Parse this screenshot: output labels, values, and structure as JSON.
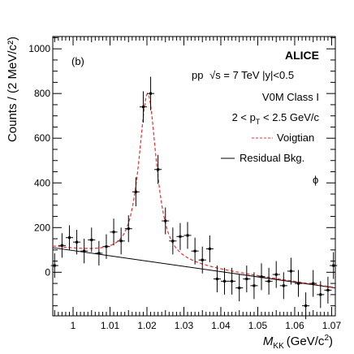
{
  "chart_data": {
    "type": "scatter",
    "panel_label": "(b)",
    "xlabel_main": "M",
    "xlabel_sub": "KK",
    "xlabel_unit": "(GeV/c",
    "xlabel_exp": "2",
    "xlabel_close": ")",
    "ylabel": "Counts / (2 MeV/c²)",
    "xlim": [
      0.9945,
      1.071
    ],
    "ylim": [
      -195,
      1055
    ],
    "xticks": [
      1,
      1.01,
      1.02,
      1.03,
      1.04,
      1.05,
      1.06,
      1.07
    ],
    "xtick_labels": [
      "1",
      "1.01",
      "1.02",
      "1.03",
      "1.04",
      "1.05",
      "1.06",
      "1.07"
    ],
    "yticks": [
      0,
      200,
      400,
      600,
      800,
      1000
    ],
    "ytick_labels": [
      "0",
      "200",
      "400",
      "600",
      "800",
      "1000"
    ],
    "annotations": {
      "experiment": "ALICE",
      "collision": "pp",
      "sqrt_s": "√s",
      "energy": " = 7 TeV  |y|<0.5",
      "class": "V0M Class I",
      "pt_pre": "2 < p",
      "pt_sub": "T",
      "pt_post": " < 2.5 GeV/c",
      "particle": "ϕ"
    },
    "legend": {
      "position": "top-right",
      "entries": [
        {
          "label": "Voigtian",
          "style": "dashed",
          "color": "#e8302f"
        },
        {
          "label": "Residual Bkg.",
          "style": "solid",
          "color": "#000000"
        }
      ]
    },
    "series": [
      {
        "name": "data",
        "style": "points-with-errors",
        "color": "#000000",
        "points": [
          {
            "x": 0.995,
            "y": 30,
            "err": 55
          },
          {
            "x": 0.997,
            "y": 120,
            "err": 55
          },
          {
            "x": 0.999,
            "y": 155,
            "err": 55
          },
          {
            "x": 1.001,
            "y": 135,
            "err": 55
          },
          {
            "x": 1.003,
            "y": 95,
            "err": 55
          },
          {
            "x": 1.005,
            "y": 145,
            "err": 55
          },
          {
            "x": 1.007,
            "y": 85,
            "err": 55
          },
          {
            "x": 1.009,
            "y": 115,
            "err": 55
          },
          {
            "x": 1.011,
            "y": 180,
            "err": 60
          },
          {
            "x": 1.013,
            "y": 140,
            "err": 60
          },
          {
            "x": 1.015,
            "y": 195,
            "err": 60
          },
          {
            "x": 1.017,
            "y": 360,
            "err": 65
          },
          {
            "x": 1.019,
            "y": 740,
            "err": 70
          },
          {
            "x": 1.021,
            "y": 800,
            "err": 75
          },
          {
            "x": 1.023,
            "y": 460,
            "err": 65
          },
          {
            "x": 1.025,
            "y": 230,
            "err": 60
          },
          {
            "x": 1.027,
            "y": 140,
            "err": 60
          },
          {
            "x": 1.029,
            "y": 160,
            "err": 60
          },
          {
            "x": 1.031,
            "y": 165,
            "err": 60
          },
          {
            "x": 1.033,
            "y": 95,
            "err": 60
          },
          {
            "x": 1.035,
            "y": 55,
            "err": 60
          },
          {
            "x": 1.037,
            "y": 105,
            "err": 60
          },
          {
            "x": 1.039,
            "y": -30,
            "err": 60
          },
          {
            "x": 1.041,
            "y": -40,
            "err": 60
          },
          {
            "x": 1.043,
            "y": -40,
            "err": 60
          },
          {
            "x": 1.045,
            "y": -70,
            "err": 60
          },
          {
            "x": 1.047,
            "y": -30,
            "err": 60
          },
          {
            "x": 1.049,
            "y": -60,
            "err": 60
          },
          {
            "x": 1.051,
            "y": -20,
            "err": 60
          },
          {
            "x": 1.053,
            "y": -40,
            "err": 60
          },
          {
            "x": 1.055,
            "y": -10,
            "err": 60
          },
          {
            "x": 1.057,
            "y": -60,
            "err": 60
          },
          {
            "x": 1.059,
            "y": 5,
            "err": 60
          },
          {
            "x": 1.061,
            "y": -50,
            "err": 60
          },
          {
            "x": 1.063,
            "y": -150,
            "err": 60
          },
          {
            "x": 1.065,
            "y": -50,
            "err": 60
          },
          {
            "x": 1.067,
            "y": -100,
            "err": 60
          },
          {
            "x": 1.069,
            "y": -80,
            "err": 60
          },
          {
            "x": 1.0705,
            "y": 30,
            "err": 60
          }
        ]
      },
      {
        "name": "Voigtian",
        "style": "dashed",
        "color": "#e8302f",
        "model": {
          "mass": 1.0202,
          "width": 0.0045,
          "sigma": 0.0011,
          "peak_height": 800
        }
      },
      {
        "name": "Residual Bkg.",
        "style": "solid",
        "color": "#000000",
        "line": [
          {
            "x": 0.9945,
            "y": 110
          },
          {
            "x": 1.071,
            "y": -70
          }
        ]
      }
    ]
  }
}
